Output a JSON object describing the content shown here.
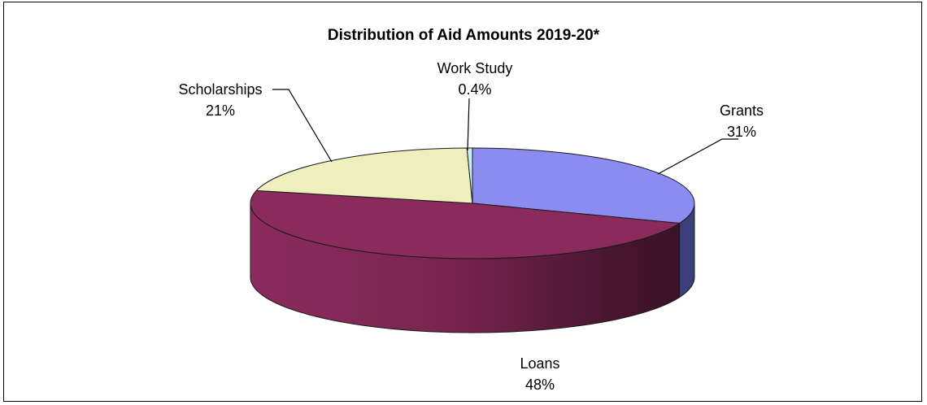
{
  "chart_data": {
    "type": "pie",
    "style": "3d",
    "title": "Distribution of Aid Amounts 2019-20*",
    "slices": [
      {
        "label": "Grants",
        "value": 31,
        "display": "31%",
        "color": "#8c8cf0",
        "side_color": "#3b3f7a"
      },
      {
        "label": "Loans",
        "value": 48,
        "display": "48%",
        "color": "#8a2b5c",
        "side_color": "#8a2b5c"
      },
      {
        "label": "Scholarships",
        "value": 21,
        "display": "21%",
        "color": "#efefbe",
        "side_color": "#c9c98e"
      },
      {
        "label": "Work Study",
        "value": 0.4,
        "display": "0.4%",
        "color": "#c9ecf6",
        "side_color": "#9cc7d4"
      }
    ]
  }
}
